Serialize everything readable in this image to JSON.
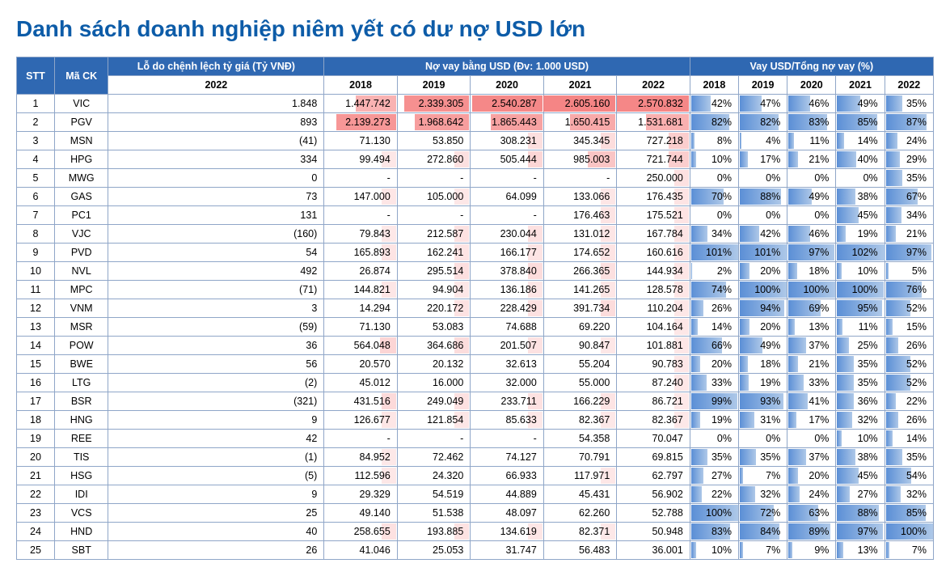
{
  "title": "Danh sách doanh nghiệp niêm yết có dư nợ USD lớn",
  "columns": {
    "stt": "STT",
    "ma_ck": "Mã CK",
    "lo_chenhlech": "Lỗ do chệnh lệch tỷ giá (Tỷ VNĐ)",
    "lo_year": "2022",
    "usd_header": "Nợ vay bằng USD (Đv: 1.000 USD)",
    "pct_header": "Vay USD/Tổng nợ vay (%)",
    "years": [
      "2018",
      "2019",
      "2020",
      "2021",
      "2022"
    ]
  },
  "style": {
    "header_bg": "#2f68b2",
    "header_fg": "#ffffff",
    "border": "#8fa6c8",
    "title_color": "#0d5ca8",
    "usd_bar_color": "#f48282",
    "pct_bar_color": "#5b8fd6",
    "usd_max": 2605160,
    "pct_max": 102
  },
  "rows": [
    {
      "stt": 1,
      "ck": "VIC",
      "lo": "1.848",
      "usd": [
        "1.447.742",
        "2.339.305",
        "2.540.287",
        "2.605.160",
        "2.570.832"
      ],
      "usd_v": [
        1447742,
        2339305,
        2540287,
        2605160,
        2570832
      ],
      "pct": [
        "42%",
        "47%",
        "46%",
        "49%",
        "35%"
      ],
      "pct_v": [
        42,
        47,
        46,
        49,
        35
      ]
    },
    {
      "stt": 2,
      "ck": "PGV",
      "lo": "893",
      "usd": [
        "2.139.273",
        "1.968.642",
        "1.865.443",
        "1.650.415",
        "1.531.681"
      ],
      "usd_v": [
        2139273,
        1968642,
        1865443,
        1650415,
        1531681
      ],
      "pct": [
        "82%",
        "82%",
        "83%",
        "85%",
        "87%"
      ],
      "pct_v": [
        82,
        82,
        83,
        85,
        87
      ]
    },
    {
      "stt": 3,
      "ck": "MSN",
      "lo": "(41)",
      "usd": [
        "71.130",
        "53.850",
        "308.231",
        "345.345",
        "727.218"
      ],
      "usd_v": [
        71130,
        53850,
        308231,
        345345,
        727218
      ],
      "pct": [
        "8%",
        "4%",
        "11%",
        "14%",
        "24%"
      ],
      "pct_v": [
        8,
        4,
        11,
        14,
        24
      ]
    },
    {
      "stt": 4,
      "ck": "HPG",
      "lo": "334",
      "usd": [
        "99.494",
        "272.860",
        "505.444",
        "985.003",
        "721.744"
      ],
      "usd_v": [
        99494,
        272860,
        505444,
        985003,
        721744
      ],
      "pct": [
        "10%",
        "17%",
        "21%",
        "40%",
        "29%"
      ],
      "pct_v": [
        10,
        17,
        21,
        40,
        29
      ]
    },
    {
      "stt": 5,
      "ck": "MWG",
      "lo": "0",
      "usd": [
        "-",
        "-",
        "-",
        "-",
        "250.000"
      ],
      "usd_v": [
        0,
        0,
        0,
        0,
        250000
      ],
      "pct": [
        "0%",
        "0%",
        "0%",
        "0%",
        "35%"
      ],
      "pct_v": [
        0,
        0,
        0,
        0,
        35
      ]
    },
    {
      "stt": 6,
      "ck": "GAS",
      "lo": "73",
      "usd": [
        "147.000",
        "105.000",
        "64.099",
        "133.066",
        "176.435"
      ],
      "usd_v": [
        147000,
        105000,
        64099,
        133066,
        176435
      ],
      "pct": [
        "70%",
        "88%",
        "49%",
        "38%",
        "67%"
      ],
      "pct_v": [
        70,
        88,
        49,
        38,
        67
      ]
    },
    {
      "stt": 7,
      "ck": "PC1",
      "lo": "131",
      "usd": [
        "-",
        "-",
        "-",
        "176.463",
        "175.521"
      ],
      "usd_v": [
        0,
        0,
        0,
        176463,
        175521
      ],
      "pct": [
        "0%",
        "0%",
        "0%",
        "45%",
        "34%"
      ],
      "pct_v": [
        0,
        0,
        0,
        45,
        34
      ]
    },
    {
      "stt": 8,
      "ck": "VJC",
      "lo": "(160)",
      "usd": [
        "79.843",
        "212.587",
        "230.044",
        "131.012",
        "167.784"
      ],
      "usd_v": [
        79843,
        212587,
        230044,
        131012,
        167784
      ],
      "pct": [
        "34%",
        "42%",
        "46%",
        "19%",
        "21%"
      ],
      "pct_v": [
        34,
        42,
        46,
        19,
        21
      ]
    },
    {
      "stt": 9,
      "ck": "PVD",
      "lo": "54",
      "usd": [
        "165.893",
        "162.241",
        "166.177",
        "174.652",
        "160.616"
      ],
      "usd_v": [
        165893,
        162241,
        166177,
        174652,
        160616
      ],
      "pct": [
        "101%",
        "101%",
        "97%",
        "102%",
        "97%"
      ],
      "pct_v": [
        101,
        101,
        97,
        102,
        97
      ]
    },
    {
      "stt": 10,
      "ck": "NVL",
      "lo": "492",
      "usd": [
        "26.874",
        "295.514",
        "378.840",
        "266.365",
        "144.934"
      ],
      "usd_v": [
        26874,
        295514,
        378840,
        266365,
        144934
      ],
      "pct": [
        "2%",
        "20%",
        "18%",
        "10%",
        "5%"
      ],
      "pct_v": [
        2,
        20,
        18,
        10,
        5
      ]
    },
    {
      "stt": 11,
      "ck": "MPC",
      "lo": "(71)",
      "usd": [
        "144.821",
        "94.904",
        "136.186",
        "141.265",
        "128.578"
      ],
      "usd_v": [
        144821,
        94904,
        136186,
        141265,
        128578
      ],
      "pct": [
        "74%",
        "100%",
        "100%",
        "100%",
        "76%"
      ],
      "pct_v": [
        74,
        100,
        100,
        100,
        76
      ]
    },
    {
      "stt": 12,
      "ck": "VNM",
      "lo": "3",
      "usd": [
        "14.294",
        "220.172",
        "228.429",
        "391.734",
        "110.204"
      ],
      "usd_v": [
        14294,
        220172,
        228429,
        391734,
        110204
      ],
      "pct": [
        "26%",
        "94%",
        "69%",
        "95%",
        "52%"
      ],
      "pct_v": [
        26,
        94,
        69,
        95,
        52
      ]
    },
    {
      "stt": 13,
      "ck": "MSR",
      "lo": "(59)",
      "usd": [
        "71.130",
        "53.083",
        "74.688",
        "69.220",
        "104.164"
      ],
      "usd_v": [
        71130,
        53083,
        74688,
        69220,
        104164
      ],
      "pct": [
        "14%",
        "20%",
        "13%",
        "11%",
        "15%"
      ],
      "pct_v": [
        14,
        20,
        13,
        11,
        15
      ]
    },
    {
      "stt": 14,
      "ck": "POW",
      "lo": "36",
      "usd": [
        "564.048",
        "364.686",
        "201.507",
        "90.847",
        "101.881"
      ],
      "usd_v": [
        564048,
        364686,
        201507,
        90847,
        101881
      ],
      "pct": [
        "66%",
        "49%",
        "37%",
        "25%",
        "26%"
      ],
      "pct_v": [
        66,
        49,
        37,
        25,
        26
      ]
    },
    {
      "stt": 15,
      "ck": "BWE",
      "lo": "56",
      "usd": [
        "20.570",
        "20.132",
        "32.613",
        "55.204",
        "90.783"
      ],
      "usd_v": [
        20570,
        20132,
        32613,
        55204,
        90783
      ],
      "pct": [
        "20%",
        "18%",
        "21%",
        "35%",
        "52%"
      ],
      "pct_v": [
        20,
        18,
        21,
        35,
        52
      ]
    },
    {
      "stt": 16,
      "ck": "LTG",
      "lo": "(2)",
      "usd": [
        "45.012",
        "16.000",
        "32.000",
        "55.000",
        "87.240"
      ],
      "usd_v": [
        45012,
        16000,
        32000,
        55000,
        87240
      ],
      "pct": [
        "33%",
        "19%",
        "33%",
        "35%",
        "52%"
      ],
      "pct_v": [
        33,
        19,
        33,
        35,
        52
      ]
    },
    {
      "stt": 17,
      "ck": "BSR",
      "lo": "(321)",
      "usd": [
        "431.516",
        "249.049",
        "233.711",
        "166.229",
        "86.721"
      ],
      "usd_v": [
        431516,
        249049,
        233711,
        166229,
        86721
      ],
      "pct": [
        "99%",
        "93%",
        "41%",
        "36%",
        "22%"
      ],
      "pct_v": [
        99,
        93,
        41,
        36,
        22
      ]
    },
    {
      "stt": 18,
      "ck": "HNG",
      "lo": "9",
      "usd": [
        "126.677",
        "121.854",
        "85.633",
        "82.367",
        "82.367"
      ],
      "usd_v": [
        126677,
        121854,
        85633,
        82367,
        82367
      ],
      "pct": [
        "19%",
        "31%",
        "17%",
        "32%",
        "26%"
      ],
      "pct_v": [
        19,
        31,
        17,
        32,
        26
      ]
    },
    {
      "stt": 19,
      "ck": "REE",
      "lo": "42",
      "usd": [
        "-",
        "-",
        "-",
        "54.358",
        "70.047"
      ],
      "usd_v": [
        0,
        0,
        0,
        54358,
        70047
      ],
      "pct": [
        "0%",
        "0%",
        "0%",
        "10%",
        "14%"
      ],
      "pct_v": [
        0,
        0,
        0,
        10,
        14
      ]
    },
    {
      "stt": 20,
      "ck": "TIS",
      "lo": "(1)",
      "usd": [
        "84.952",
        "72.462",
        "74.127",
        "70.791",
        "69.815"
      ],
      "usd_v": [
        84952,
        72462,
        74127,
        70791,
        69815
      ],
      "pct": [
        "35%",
        "35%",
        "37%",
        "38%",
        "35%"
      ],
      "pct_v": [
        35,
        35,
        37,
        38,
        35
      ]
    },
    {
      "stt": 21,
      "ck": "HSG",
      "lo": "(5)",
      "usd": [
        "112.596",
        "24.320",
        "66.933",
        "117.971",
        "62.797"
      ],
      "usd_v": [
        112596,
        24320,
        66933,
        117971,
        62797
      ],
      "pct": [
        "27%",
        "7%",
        "20%",
        "45%",
        "54%"
      ],
      "pct_v": [
        27,
        7,
        20,
        45,
        54
      ]
    },
    {
      "stt": 22,
      "ck": "IDI",
      "lo": "9",
      "usd": [
        "29.329",
        "54.519",
        "44.889",
        "45.431",
        "56.902"
      ],
      "usd_v": [
        29329,
        54519,
        44889,
        45431,
        56902
      ],
      "pct": [
        "22%",
        "32%",
        "24%",
        "27%",
        "32%"
      ],
      "pct_v": [
        22,
        32,
        24,
        27,
        32
      ]
    },
    {
      "stt": 23,
      "ck": "VCS",
      "lo": "25",
      "usd": [
        "49.140",
        "51.538",
        "48.097",
        "62.260",
        "52.788"
      ],
      "usd_v": [
        49140,
        51538,
        48097,
        62260,
        52788
      ],
      "pct": [
        "100%",
        "72%",
        "63%",
        "88%",
        "85%"
      ],
      "pct_v": [
        100,
        72,
        63,
        88,
        85
      ]
    },
    {
      "stt": 24,
      "ck": "HND",
      "lo": "40",
      "usd": [
        "258.655",
        "193.885",
        "134.619",
        "82.371",
        "50.948"
      ],
      "usd_v": [
        258655,
        193885,
        134619,
        82371,
        50948
      ],
      "pct": [
        "83%",
        "84%",
        "89%",
        "97%",
        "100%"
      ],
      "pct_v": [
        83,
        84,
        89,
        97,
        100
      ]
    },
    {
      "stt": 25,
      "ck": "SBT",
      "lo": "26",
      "usd": [
        "41.046",
        "25.053",
        "31.747",
        "56.483",
        "36.001"
      ],
      "usd_v": [
        41046,
        25053,
        31747,
        56483,
        36001
      ],
      "pct": [
        "10%",
        "7%",
        "9%",
        "13%",
        "7%"
      ],
      "pct_v": [
        10,
        7,
        9,
        13,
        7
      ]
    }
  ]
}
